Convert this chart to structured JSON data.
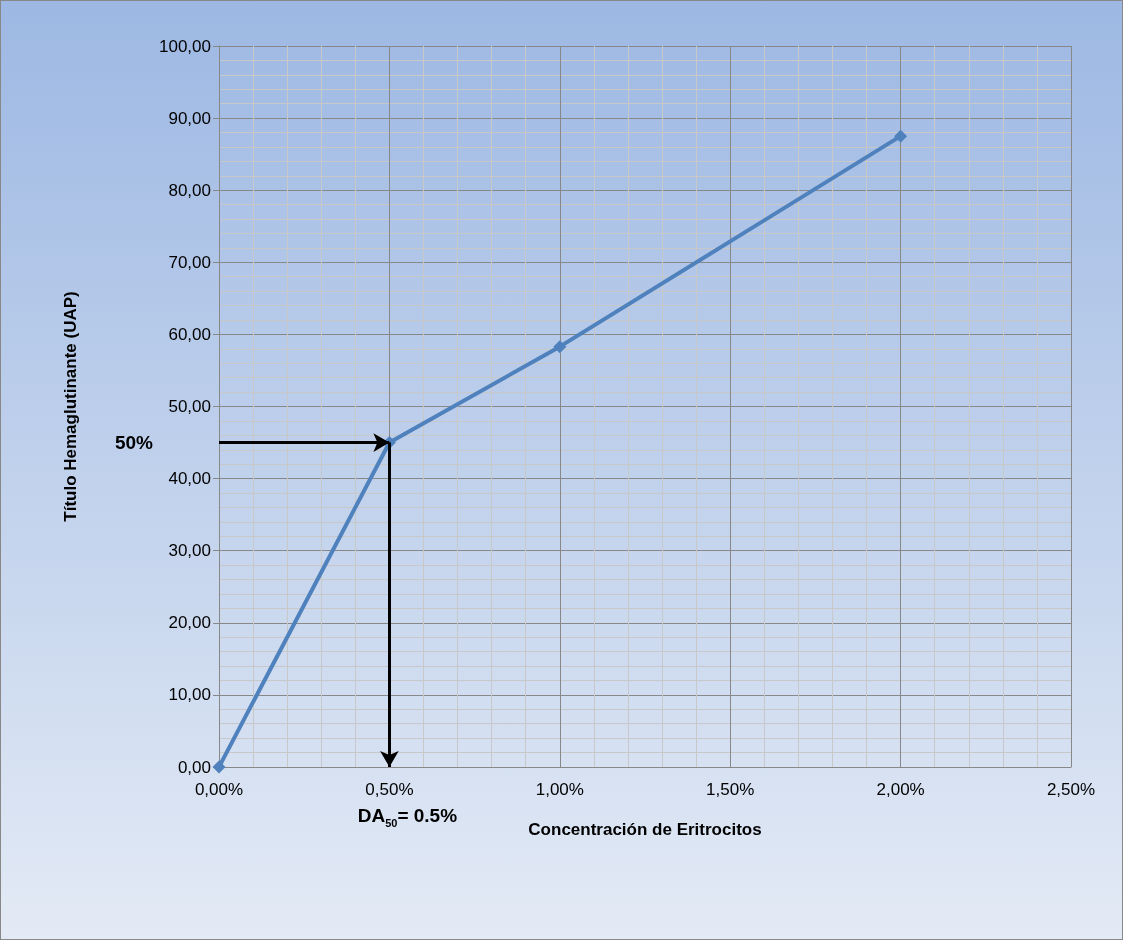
{
  "chart_data": {
    "type": "line",
    "xlabel": "Concentración de Eritrocitos",
    "ylabel": "Título Hemaglutinante (UAP)",
    "x": [
      0,
      0.5,
      1,
      2
    ],
    "series": [
      {
        "color": "#4f81bd",
        "values": [
          0,
          45,
          58.3,
          87.5
        ]
      }
    ],
    "xlim": [
      0,
      2.5
    ],
    "xticks": [
      {
        "value": 0,
        "label": "0,00%"
      },
      {
        "value": 0.5,
        "label": "0,50%"
      },
      {
        "value": 1,
        "label": "1,00%"
      },
      {
        "value": 1.5,
        "label": "1,50%"
      },
      {
        "value": 2,
        "label": "2,00%"
      },
      {
        "value": 2.5,
        "label": "2,50%"
      }
    ],
    "ylim": [
      0,
      100
    ],
    "yticks": [
      {
        "value": 0,
        "label": "0,00"
      },
      {
        "value": 10,
        "label": "10,00"
      },
      {
        "value": 20,
        "label": "20,00"
      },
      {
        "value": 30,
        "label": "30,00"
      },
      {
        "value": 40,
        "label": "40,00"
      },
      {
        "value": 50,
        "label": "50,00"
      },
      {
        "value": 60,
        "label": "60,00"
      },
      {
        "value": 70,
        "label": "70,00"
      },
      {
        "value": 80,
        "label": "80,00"
      },
      {
        "value": 90,
        "label": "90,00"
      },
      {
        "value": 100,
        "label": "100,00"
      }
    ],
    "annotations": [
      "50%",
      "DA$_{50}$= 0.5%"
    ],
    "grid": true,
    "marker": "diamond",
    "line_style": "solid"
  }
}
